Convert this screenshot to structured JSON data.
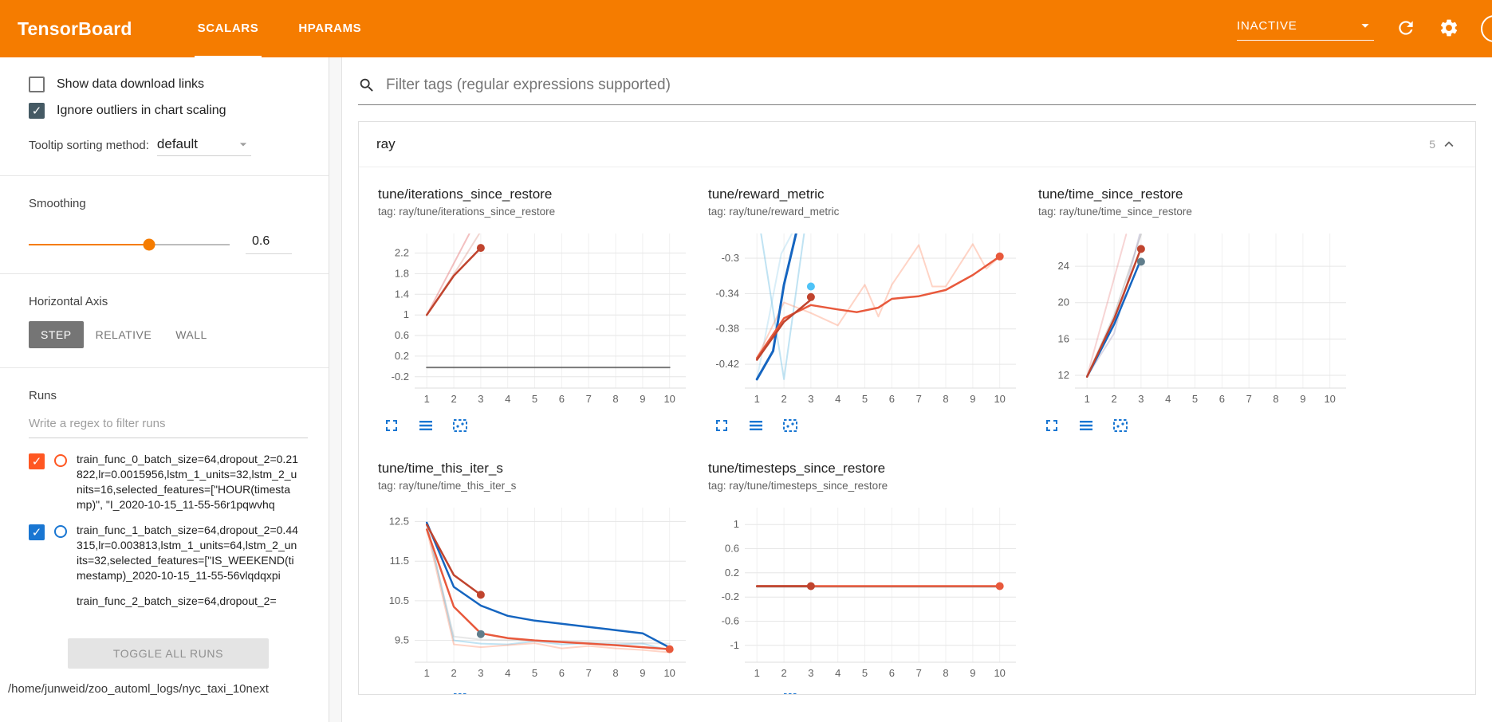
{
  "colors": {
    "header_bg": "#f57c00",
    "accent_orange": "#f57c00",
    "icon_blue": "#1976d2",
    "checkbox_dark": "#455a64"
  },
  "header": {
    "title": "TensorBoard",
    "tabs": [
      {
        "label": "SCALARS",
        "active": true
      },
      {
        "label": "HPARAMS",
        "active": false
      }
    ],
    "status": "INACTIVE"
  },
  "sidebar": {
    "checkboxes": [
      {
        "label": "Show data download links",
        "checked": false
      },
      {
        "label": "Ignore outliers in chart scaling",
        "checked": true
      }
    ],
    "tooltip_sorting": {
      "label": "Tooltip sorting method:",
      "value": "default"
    },
    "smoothing": {
      "label": "Smoothing",
      "value": "0.6"
    },
    "horizontal_axis": {
      "label": "Horizontal Axis",
      "options": [
        "STEP",
        "RELATIVE",
        "WALL"
      ],
      "selected": "STEP"
    },
    "runs": {
      "label": "Runs",
      "filter_placeholder": "Write a regex to filter runs",
      "items": [
        {
          "label": "train_func_0_batch_size=64,dropout_2=0.21822,lr=0.0015956,lstm_1_units=32,lstm_2_units=16,selected_features=[\"HOUR(timestamp)\", \"I_2020-10-15_11-55-56r1pqwvhq",
          "checked": true,
          "color": "#ff5722"
        },
        {
          "label": "train_func_1_batch_size=64,dropout_2=0.44315,lr=0.003813,lstm_1_units=64,lstm_2_units=32,selected_features=[\"IS_WEEKEND(timestamp)_2020-10-15_11-55-56vlqdqxpi",
          "checked": true,
          "color": "#1976d2"
        },
        {
          "label": "train_func_2_batch_size=64,dropout_2=",
          "checked": true
        }
      ],
      "toggle_all_label": "TOGGLE ALL RUNS",
      "logdir_path": "/home/junweid/zoo_automl_logs/nyc_taxi_10next"
    }
  },
  "main": {
    "filter_placeholder": "Filter tags (regular expressions supported)",
    "group": {
      "name": "ray",
      "count": "5"
    }
  },
  "chart_data": [
    {
      "type": "line",
      "title": "tune/iterations_since_restore",
      "subtitle": "tag: ray/tune/iterations_since_restore",
      "xlabel": "",
      "ylabel": "",
      "xlim": [
        0.55,
        10.6
      ],
      "ylim": [
        -0.42,
        2.58
      ],
      "xticks": [
        1,
        2,
        3,
        4,
        5,
        6,
        7,
        8,
        9,
        10
      ],
      "yticks": [
        -0.2,
        0.2,
        0.6,
        1,
        1.4,
        1.8,
        2.2
      ],
      "series": [
        {
          "name": "run2-raw",
          "color": "#e57373",
          "opacity": 0.45,
          "width": 2,
          "points": [
            [
              1,
              1
            ],
            [
              2,
              2.0
            ],
            [
              2.58,
              2.58
            ]
          ]
        },
        {
          "name": "run2-raw-b",
          "color": "#c0442e",
          "opacity": 0.22,
          "width": 2,
          "points": [
            [
              1,
              1
            ],
            [
              2.2,
              1.95
            ],
            [
              2.95,
              2.58
            ]
          ]
        },
        {
          "name": "run4-gray",
          "color": "#616161",
          "opacity": 0.85,
          "width": 2,
          "points": [
            [
              1,
              -0.02
            ],
            [
              10,
              -0.02
            ]
          ]
        },
        {
          "name": "run2-smoothed",
          "color": "#c0442e",
          "width": 2.5,
          "points": [
            [
              1,
              1
            ],
            [
              2,
              1.76
            ],
            [
              3,
              2.3
            ]
          ],
          "dots": [
            [
              3,
              2.3
            ]
          ]
        }
      ]
    },
    {
      "type": "line",
      "title": "tune/reward_metric",
      "subtitle": "tag: ray/tune/reward_metric",
      "xlabel": "",
      "ylabel": "",
      "xlim": [
        0.55,
        10.6
      ],
      "ylim": [
        -0.447,
        -0.272
      ],
      "xticks": [
        1,
        2,
        3,
        4,
        5,
        6,
        7,
        8,
        9,
        10
      ],
      "yticks": [
        -0.42,
        -0.38,
        -0.34,
        -0.3
      ],
      "series": [
        {
          "name": "run3-raw",
          "color": "#81c7e8",
          "opacity": 0.5,
          "width": 2,
          "points": [
            [
              1.15,
              -0.272
            ],
            [
              2,
              -0.437
            ],
            [
              2.75,
              -0.272
            ]
          ]
        },
        {
          "name": "run3-raw-b",
          "color": "#81c7e8",
          "opacity": 0.3,
          "width": 2,
          "points": [
            [
              1,
              -0.437
            ],
            [
              1.9,
              -0.295
            ],
            [
              2.3,
              -0.272
            ]
          ]
        },
        {
          "name": "run0-raw",
          "color": "#ff7043",
          "opacity": 0.3,
          "width": 2,
          "points": [
            [
              1,
              -0.413
            ],
            [
              2,
              -0.35
            ],
            [
              3,
              -0.362
            ],
            [
              4,
              -0.376
            ],
            [
              5,
              -0.33
            ],
            [
              5.5,
              -0.366
            ],
            [
              6,
              -0.33
            ],
            [
              7,
              -0.285
            ],
            [
              7.5,
              -0.332
            ],
            [
              8,
              -0.332
            ],
            [
              9,
              -0.284
            ],
            [
              9.5,
              -0.312
            ],
            [
              10,
              -0.298
            ]
          ]
        },
        {
          "name": "run1-smoothed",
          "color": "#1565c0",
          "width": 3,
          "points": [
            [
              1,
              -0.437
            ],
            [
              1.6,
              -0.405
            ],
            [
              2,
              -0.33
            ],
            [
              2.45,
              -0.272
            ]
          ]
        },
        {
          "name": "run0-smoothed",
          "color": "#e8593c",
          "width": 2.5,
          "points": [
            [
              1,
              -0.413
            ],
            [
              2,
              -0.368
            ],
            [
              3,
              -0.353
            ],
            [
              4,
              -0.358
            ],
            [
              4.7,
              -0.361
            ],
            [
              5.5,
              -0.356
            ],
            [
              6,
              -0.346
            ],
            [
              7,
              -0.343
            ],
            [
              8,
              -0.336
            ],
            [
              9,
              -0.319
            ],
            [
              10,
              -0.298
            ]
          ],
          "dots": [
            [
              10,
              -0.298
            ]
          ]
        },
        {
          "name": "run2-smoothed",
          "color": "#c0442e",
          "width": 2.5,
          "points": [
            [
              1,
              -0.415
            ],
            [
              2,
              -0.372
            ],
            [
              3,
              -0.347
            ]
          ],
          "dots": [
            [
              3,
              -0.344
            ]
          ]
        },
        {
          "name": "run3-smoothed",
          "color": "#4fc3f7",
          "points": [],
          "dots": [
            [
              3,
              -0.332
            ]
          ]
        }
      ]
    },
    {
      "type": "line",
      "title": "tune/time_since_restore",
      "subtitle": "tag: ray/tune/time_since_restore",
      "xlabel": "",
      "ylabel": "",
      "xlim": [
        0.55,
        10.6
      ],
      "ylim": [
        10.6,
        27.6
      ],
      "xticks": [
        1,
        2,
        3,
        4,
        5,
        6,
        7,
        8,
        9,
        10
      ],
      "yticks": [
        12,
        16,
        20,
        24
      ],
      "series": [
        {
          "name": "raw-gray",
          "color": "#9e9e9e",
          "opacity": 0.4,
          "width": 2,
          "points": [
            [
              1,
              11.9
            ],
            [
              2,
              18.6
            ],
            [
              3,
              27.5
            ]
          ]
        },
        {
          "name": "raw-lavender",
          "color": "#b0a8c8",
          "opacity": 0.45,
          "width": 2,
          "points": [
            [
              1,
              11.9
            ],
            [
              2,
              16.6
            ],
            [
              2.95,
              27.5
            ]
          ]
        },
        {
          "name": "raw-pink",
          "color": "#e57373",
          "opacity": 0.3,
          "width": 2,
          "points": [
            [
              1,
              11.9
            ],
            [
              2.45,
              27.5
            ]
          ]
        },
        {
          "name": "run1",
          "color": "#1565c0",
          "width": 2.5,
          "points": [
            [
              1,
              11.85
            ],
            [
              2,
              17.6
            ],
            [
              3,
              24.8
            ]
          ]
        },
        {
          "name": "run2",
          "color": "#c0442e",
          "width": 2.5,
          "points": [
            [
              1,
              11.85
            ],
            [
              2,
              18.2
            ],
            [
              3,
              26.0
            ]
          ],
          "dots": [
            [
              3,
              25.9
            ]
          ]
        },
        {
          "name": "gray-dot",
          "color": "#607d8b",
          "points": [],
          "dots": [
            [
              3,
              24.5
            ]
          ]
        }
      ]
    },
    {
      "type": "line",
      "title": "tune/time_this_iter_s",
      "subtitle": "tag: ray/tune/time_this_iter_s",
      "xlabel": "",
      "ylabel": "",
      "xlim": [
        0.55,
        10.6
      ],
      "ylim": [
        8.95,
        12.85
      ],
      "xticks": [
        1,
        2,
        3,
        4,
        5,
        6,
        7,
        8,
        9,
        10
      ],
      "yticks": [
        9.5,
        10.5,
        11.5,
        12.5
      ],
      "series": [
        {
          "name": "run3-raw",
          "color": "#81c7e8",
          "opacity": 0.5,
          "width": 2,
          "points": [
            [
              1,
              12.45
            ],
            [
              2,
              9.5
            ],
            [
              3,
              9.42
            ],
            [
              4,
              9.4
            ],
            [
              5,
              9.48
            ],
            [
              6,
              9.4
            ],
            [
              7,
              9.43
            ],
            [
              8,
              9.4
            ],
            [
              9,
              9.42
            ],
            [
              10,
              9.25
            ]
          ]
        },
        {
          "name": "run0-raw",
          "color": "#ff7043",
          "opacity": 0.3,
          "width": 2,
          "points": [
            [
              1,
              12.3
            ],
            [
              2,
              9.4
            ],
            [
              3,
              9.33
            ],
            [
              4,
              9.38
            ],
            [
              5,
              9.43
            ],
            [
              6,
              9.3
            ],
            [
              7,
              9.36
            ],
            [
              8,
              9.3
            ],
            [
              9,
              9.26
            ],
            [
              10,
              9.2
            ]
          ]
        },
        {
          "name": "raw-gray",
          "color": "#9e9e9e",
          "opacity": 0.25,
          "width": 2,
          "points": [
            [
              1,
              12.4
            ],
            [
              2,
              9.6
            ],
            [
              3,
              9.52
            ],
            [
              10,
              9.42
            ]
          ]
        },
        {
          "name": "run1",
          "color": "#1565c0",
          "width": 2.5,
          "points": [
            [
              1,
              12.47
            ],
            [
              2,
              10.85
            ],
            [
              3,
              10.38
            ],
            [
              4,
              10.12
            ],
            [
              5,
              10.0
            ],
            [
              6,
              9.92
            ],
            [
              7,
              9.84
            ],
            [
              8,
              9.76
            ],
            [
              9,
              9.68
            ],
            [
              10,
              9.32
            ]
          ]
        },
        {
          "name": "run2",
          "color": "#c0442e",
          "width": 2.5,
          "points": [
            [
              1,
              12.42
            ],
            [
              2,
              11.15
            ],
            [
              3,
              10.65
            ]
          ],
          "dots": [
            [
              3,
              10.65
            ]
          ]
        },
        {
          "name": "run0",
          "color": "#e8593c",
          "width": 2.5,
          "points": [
            [
              1,
              12.3
            ],
            [
              2,
              10.35
            ],
            [
              3,
              9.68
            ],
            [
              4,
              9.56
            ],
            [
              5,
              9.5
            ],
            [
              6,
              9.46
            ],
            [
              7,
              9.42
            ],
            [
              8,
              9.38
            ],
            [
              9,
              9.33
            ],
            [
              10,
              9.28
            ]
          ],
          "dots": [
            [
              10,
              9.28
            ]
          ]
        },
        {
          "name": "gray-dot",
          "color": "#607d8b",
          "points": [],
          "dots": [
            [
              3,
              9.66
            ]
          ]
        }
      ]
    },
    {
      "type": "line",
      "title": "tune/timesteps_since_restore",
      "subtitle": "tag: ray/tune/timesteps_since_restore",
      "xlabel": "",
      "ylabel": "",
      "xlim": [
        0.55,
        10.6
      ],
      "ylim": [
        -1.28,
        1.28
      ],
      "xticks": [
        1,
        2,
        3,
        4,
        5,
        6,
        7,
        8,
        9,
        10
      ],
      "yticks": [
        -1,
        -0.6,
        -0.2,
        0.2,
        0.6,
        1
      ],
      "series": [
        {
          "name": "run4-gray",
          "color": "#757575",
          "opacity": 0.8,
          "width": 2,
          "points": [
            [
              1,
              -0.03
            ],
            [
              10,
              -0.03
            ]
          ]
        },
        {
          "name": "run0",
          "color": "#e8593c",
          "width": 2.5,
          "points": [
            [
              1,
              -0.02
            ],
            [
              10,
              -0.02
            ]
          ],
          "dots": [
            [
              10,
              -0.02
            ]
          ]
        },
        {
          "name": "run2",
          "color": "#c0442e",
          "width": 2.5,
          "points": [
            [
              1,
              -0.02
            ],
            [
              3,
              -0.02
            ]
          ],
          "dots": [
            [
              3,
              -0.02
            ]
          ]
        }
      ]
    }
  ]
}
